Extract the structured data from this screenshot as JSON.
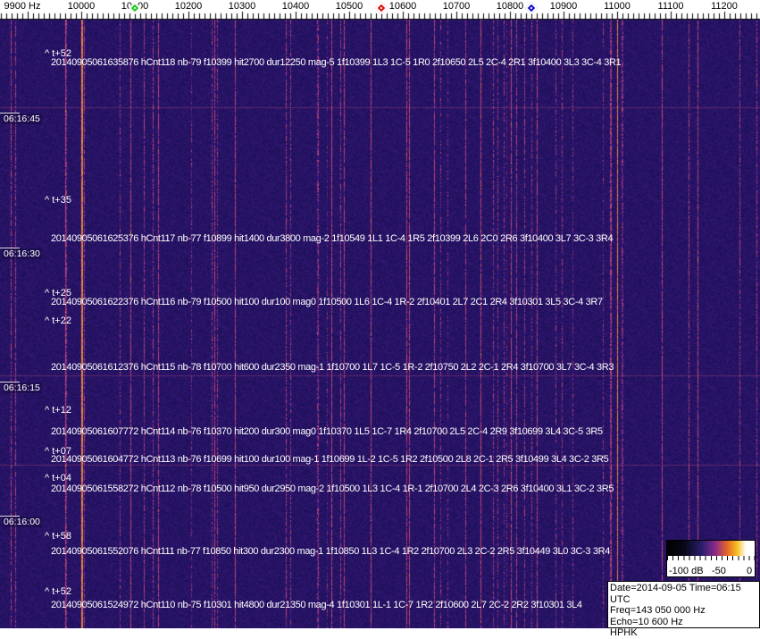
{
  "frequency_axis": {
    "labels": [
      "9900 Hz",
      "10000",
      "10100",
      "10200",
      "10300",
      "10400",
      "10500",
      "10600",
      "10700",
      "10800",
      "10900",
      "11000",
      "11100",
      "11200"
    ],
    "values_hz": [
      9900,
      10000,
      10100,
      10200,
      10300,
      10400,
      10500,
      10600,
      10700,
      10800,
      10900,
      11000,
      11100,
      11200
    ],
    "markers": [
      {
        "name": "green",
        "freq_hz": 10100,
        "color": "#22cc22"
      },
      {
        "name": "red",
        "freq_hz": 10560,
        "color": "#dd1111"
      },
      {
        "name": "blue",
        "freq_hz": 10840,
        "color": "#1111cc"
      }
    ]
  },
  "time_labels": [
    "06:16:45",
    "06:16:30",
    "06:16:15",
    "06:16:00"
  ],
  "time_prefixes": [
    "^ t+52",
    "^ t+35",
    "^ t+25",
    "^ t+22",
    "^ t+12",
    "^ t+07",
    "^ t+04",
    "^ t+58",
    "^ t+52"
  ],
  "events": [
    "20140905061635876 hCnt118 nb-79 f10399 hit2700 dur12250 mag-5 1f10399 1L3 1C-5 1R0 2f10650 2L5 2C-4 2R1 3f10400 3L3 3C-4 3R1",
    "20140905061625376 hCnt117 nb-77 f10899 hit1400 dur3800 mag-2 1f10549 1L1 1C-4 1R5 2f10399 2L6 2C0 2R6 3f10400 3L7 3C-3 3R4",
    "20140905061622376 hCnt116 nb-79 f10500 hit100 dur100 mag0 1f10500 1L6 1C-4 1R-2 2f10401 2L7 2C1 2R4 3f10301 3L5 3C-4 3R7",
    "20140905061612376 hCnt115 nb-78 f10700 hit600 dur2350 mag-1 1f10700 1L7 1C-5 1R-2 2f10750 2L2 2C-1 2R4 3f10700 3L7 3C-4 3R3",
    "20140905061607772 hCnt114 nb-76 f10370 hit200 dur300 mag0 1f10370 1L5 1C-7 1R4 2f10700 2L5 2C-4 2R9 3f10699 3L4 3C-5 3R5",
    "20140905061604772 hCnt113 nb-76 f10699 hit100 dur100 mag-1 1f10699 1L-2 1C-5 1R2 2f10500 2L8 2C-1 2R5 3f10499 3L4 3C-2 3R5",
    "20140905061558272 hCnt112 nb-78 f10500 hit950 dur2950 mag-2 1f10500 1L3 1C-4 1R-1 2f10700 2L4 2C-3 2R6 3f10400 3L1 3C-2 3R5",
    "20140905061552076 hCnt111 nb-77 f10850 hit300 dur2300 mag-1 1f10850 1L3 1C-4 1R2 2f10700 2L3 2C-2 2R5 3f10449 3L0 3C-3 3R4",
    "20140905061524972 hCnt110 nb-75 f10301 hit4800 dur21350 mag-4 1f10301 1L-1 1C-7 1R2 2f10600 2L7 2C-2 2R2 3f10301 3L4"
  ],
  "colorbar": {
    "labels": [
      "-100 dB",
      "-50",
      "0"
    ],
    "range_db": [
      -100,
      0
    ]
  },
  "info": {
    "datetime": "Date=2014-09-05 Time=06:15 UTC",
    "freq": "Freq=143 050 000 Hz",
    "echo": "Echo=10 600 Hz",
    "station": "HPHK"
  },
  "colors": {
    "background": "#2a1c6e",
    "strong_carrier": "#f08a30"
  }
}
